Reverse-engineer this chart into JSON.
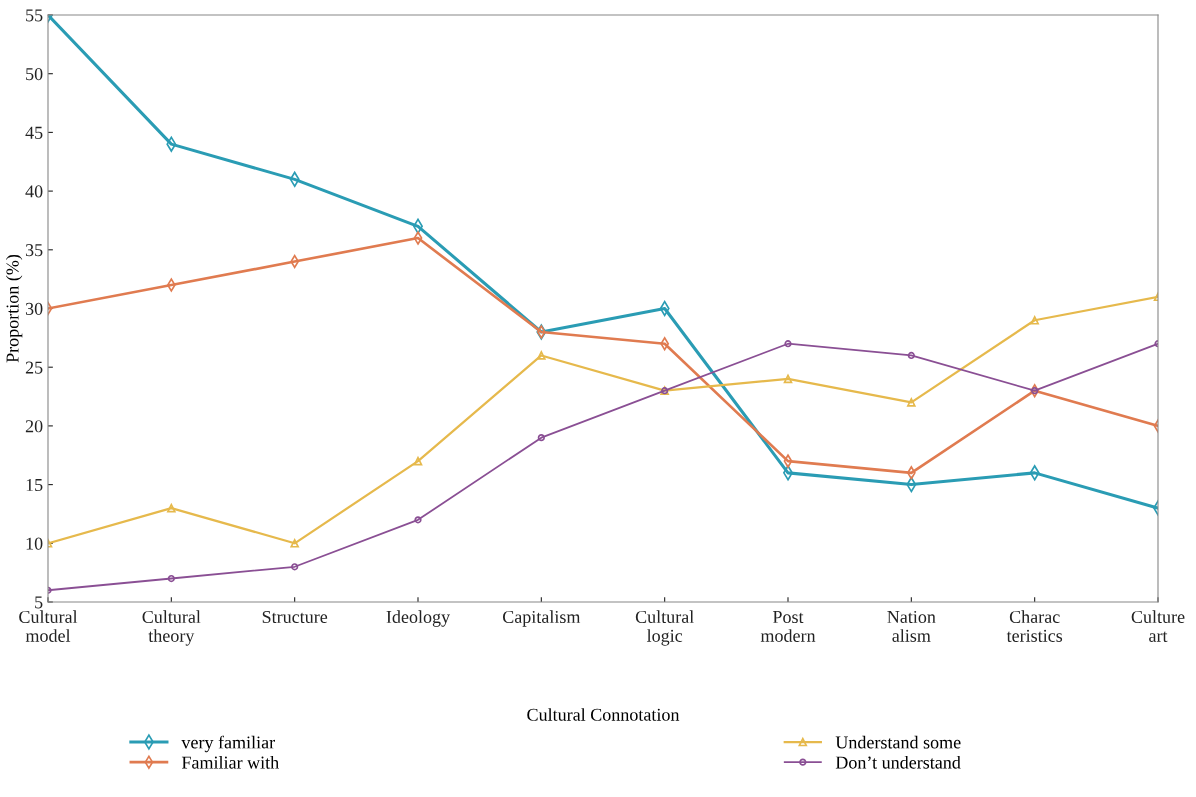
{
  "chart_data": {
    "type": "line",
    "categories": [
      "Cultural\nmodel",
      "Cultural\ntheory",
      "Structure",
      "Ideology",
      "Capitalism",
      "Cultural\nlogic",
      "Post\nmodern",
      "Nation\nalism",
      "Charac\nteristics",
      "Culture\nart"
    ],
    "series": [
      {
        "name": "very familiar",
        "color": "#2a9cb4",
        "marker": "diamond",
        "values": [
          55,
          44,
          41,
          37,
          28,
          30,
          16,
          15,
          16,
          13
        ]
      },
      {
        "name": "Familiar with",
        "color": "#e07b50",
        "marker": "diamond",
        "values": [
          30,
          32,
          34,
          36,
          28,
          27,
          17,
          16,
          23,
          20
        ]
      },
      {
        "name": "Understand some",
        "color": "#e6b94c",
        "marker": "triangle",
        "values": [
          10,
          13,
          10,
          17,
          26,
          23,
          24,
          22,
          29,
          31
        ]
      },
      {
        "name": "Don’t understand",
        "color": "#8a4f94",
        "marker": "circle",
        "values": [
          6,
          7,
          8,
          12,
          19,
          23,
          27,
          26,
          23,
          27
        ]
      }
    ],
    "xlabel": "Cultural Connotation",
    "ylabel": "Proportion (%)",
    "ylim": [
      5,
      55
    ],
    "yticks": [
      5,
      10,
      15,
      20,
      25,
      30,
      35,
      40,
      45,
      50,
      55
    ],
    "grid": false,
    "legend": "bottom",
    "line_style": "solid"
  }
}
